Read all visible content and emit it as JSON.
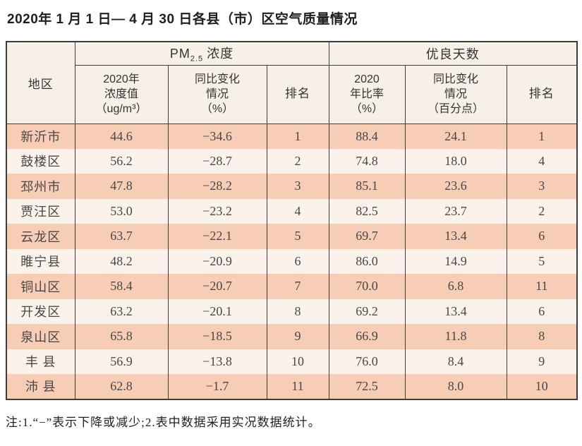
{
  "title": "2020年 1 月 1 日— 4 月 30 日各县（市）区空气质量情况",
  "table": {
    "corner_header": "地区",
    "groups": {
      "pm": {
        "prefix": "PM",
        "sub": "2.5",
        "suffix": "浓度"
      },
      "days": "优良天数"
    },
    "sub_headers": {
      "pm_value": "2020年\n浓度值\n（ug/m³）",
      "pm_change": "同比变化\n情况\n（%）",
      "pm_rank": "排名",
      "days_rate": "2020\n年比率\n（%）",
      "days_change": "同比变化\n情况\n（百分点）",
      "days_rank": "排名"
    },
    "rows": [
      {
        "region": "新沂市",
        "pm_value": "44.6",
        "pm_change": "−34.6",
        "pm_rank": "1",
        "days_rate": "88.4",
        "days_change": "24.1",
        "days_rank": "1"
      },
      {
        "region": "鼓楼区",
        "pm_value": "56.2",
        "pm_change": "−28.7",
        "pm_rank": "2",
        "days_rate": "74.8",
        "days_change": "18.0",
        "days_rank": "4"
      },
      {
        "region": "邳州市",
        "pm_value": "47.8",
        "pm_change": "−28.2",
        "pm_rank": "3",
        "days_rate": "85.1",
        "days_change": "23.6",
        "days_rank": "3"
      },
      {
        "region": "贾汪区",
        "pm_value": "53.0",
        "pm_change": "−23.2",
        "pm_rank": "4",
        "days_rate": "82.5",
        "days_change": "23.7",
        "days_rank": "2"
      },
      {
        "region": "云龙区",
        "pm_value": "63.7",
        "pm_change": "−22.1",
        "pm_rank": "5",
        "days_rate": "69.7",
        "days_change": "13.4",
        "days_rank": "6"
      },
      {
        "region": "睢宁县",
        "pm_value": "48.2",
        "pm_change": "−20.9",
        "pm_rank": "6",
        "days_rate": "86.0",
        "days_change": "14.9",
        "days_rank": "5"
      },
      {
        "region": "铜山区",
        "pm_value": "58.4",
        "pm_change": "−20.7",
        "pm_rank": "7",
        "days_rate": "70.0",
        "days_change": "6.8",
        "days_rank": "11"
      },
      {
        "region": "开发区",
        "pm_value": "63.2",
        "pm_change": "−20.1",
        "pm_rank": "8",
        "days_rate": "69.2",
        "days_change": "13.4",
        "days_rank": "6"
      },
      {
        "region": "泉山区",
        "pm_value": "65.8",
        "pm_change": "−18.5",
        "pm_rank": "9",
        "days_rate": "66.9",
        "days_change": "11.8",
        "days_rank": "8"
      },
      {
        "region": "丰 县",
        "pm_value": "56.9",
        "pm_change": "−13.8",
        "pm_rank": "10",
        "days_rate": "76.0",
        "days_change": "8.4",
        "days_rank": "9"
      },
      {
        "region": "沛 县",
        "pm_value": "62.8",
        "pm_change": "−1.7",
        "pm_rank": "11",
        "days_rate": "72.5",
        "days_change": "8.0",
        "days_rank": "10"
      }
    ]
  },
  "note": "注:1.“−”表示下降或减少;2.表中数据采用实况数据统计。",
  "colors": {
    "row_dark": "#f8cdb6",
    "row_light": "#fcf2ec",
    "header_bg": "#f7f0e9",
    "border": "#3d3d3d"
  }
}
